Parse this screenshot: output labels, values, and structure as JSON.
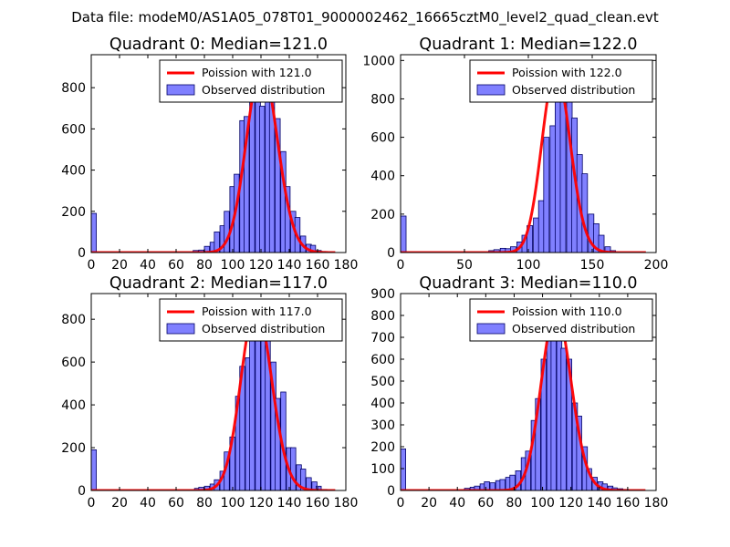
{
  "figure": {
    "suptitle": "Data file: modeM0/AS1A05_078T01_9000002462_16665cztM0_level2_quad_clean.evt"
  },
  "colors": {
    "hist_fill": "#8080ff",
    "hist_edge": "#000066",
    "line": "#ff0000",
    "legend_edge": "#000000",
    "axes_edge": "#000000"
  },
  "chart_data": [
    {
      "type": "bar",
      "title": "Quadrant 0: Median=121.0",
      "median": 121.0,
      "xlim": [
        0,
        180
      ],
      "ylim": [
        0,
        960
      ],
      "xticks": [
        0,
        20,
        40,
        60,
        80,
        100,
        120,
        140,
        160,
        180
      ],
      "yticks": [
        0,
        200,
        400,
        600,
        800
      ],
      "bin_width": 3.6,
      "bins": [
        [
          0,
          190
        ],
        [
          72,
          10
        ],
        [
          76,
          12
        ],
        [
          80,
          30
        ],
        [
          84,
          50
        ],
        [
          87,
          100
        ],
        [
          91,
          130
        ],
        [
          94,
          200
        ],
        [
          98,
          320
        ],
        [
          101,
          380
        ],
        [
          105,
          640
        ],
        [
          108,
          660
        ],
        [
          112,
          800
        ],
        [
          116,
          830
        ],
        [
          119,
          710
        ],
        [
          123,
          900
        ],
        [
          126,
          780
        ],
        [
          130,
          650
        ],
        [
          134,
          490
        ],
        [
          137,
          320
        ],
        [
          141,
          200
        ],
        [
          144,
          170
        ],
        [
          148,
          80
        ],
        [
          152,
          40
        ],
        [
          155,
          35
        ],
        [
          159,
          10
        ],
        [
          162,
          5
        ]
      ],
      "legend": {
        "line_label": "Poission with 121.0",
        "hist_label": "Observed distribution",
        "position": "upper-right"
      }
    },
    {
      "type": "bar",
      "title": "Quadrant 1: Median=122.0",
      "median": 122.0,
      "xlim": [
        0,
        200
      ],
      "ylim": [
        0,
        1030
      ],
      "xticks": [
        0,
        50,
        100,
        150,
        200
      ],
      "yticks": [
        0,
        200,
        400,
        600,
        800,
        1000
      ],
      "bin_width": 4.3,
      "bins": [
        [
          0,
          190
        ],
        [
          69,
          10
        ],
        [
          73,
          15
        ],
        [
          78,
          22
        ],
        [
          82,
          20
        ],
        [
          86,
          30
        ],
        [
          91,
          55
        ],
        [
          95,
          90
        ],
        [
          99,
          140
        ],
        [
          104,
          180
        ],
        [
          108,
          270
        ],
        [
          112,
          600
        ],
        [
          117,
          660
        ],
        [
          121,
          880
        ],
        [
          125,
          950
        ],
        [
          130,
          810
        ],
        [
          134,
          700
        ],
        [
          138,
          510
        ],
        [
          142,
          410
        ],
        [
          147,
          200
        ],
        [
          151,
          150
        ],
        [
          155,
          90
        ],
        [
          160,
          30
        ],
        [
          164,
          10
        ]
      ],
      "legend": {
        "line_label": "Poission with 122.0",
        "hist_label": "Observed distribution",
        "position": "upper-right"
      }
    },
    {
      "type": "bar",
      "title": "Quadrant 2: Median=117.0",
      "median": 117.0,
      "xlim": [
        0,
        180
      ],
      "ylim": [
        0,
        920
      ],
      "xticks": [
        0,
        20,
        40,
        60,
        80,
        100,
        120,
        140,
        160,
        180
      ],
      "yticks": [
        0,
        200,
        400,
        600,
        800
      ],
      "bin_width": 3.6,
      "bins": [
        [
          0,
          190
        ],
        [
          73,
          10
        ],
        [
          76,
          15
        ],
        [
          80,
          20
        ],
        [
          84,
          30
        ],
        [
          87,
          50
        ],
        [
          91,
          90
        ],
        [
          94,
          180
        ],
        [
          98,
          250
        ],
        [
          102,
          440
        ],
        [
          105,
          580
        ],
        [
          109,
          620
        ],
        [
          112,
          760
        ],
        [
          116,
          800
        ],
        [
          120,
          860
        ],
        [
          123,
          730
        ],
        [
          127,
          600
        ],
        [
          130,
          430
        ],
        [
          134,
          460
        ],
        [
          138,
          200
        ],
        [
          141,
          200
        ],
        [
          145,
          120
        ],
        [
          148,
          100
        ],
        [
          152,
          60
        ],
        [
          156,
          40
        ],
        [
          159,
          20
        ],
        [
          163,
          5
        ]
      ],
      "legend": {
        "line_label": "Poission with 117.0",
        "hist_label": "Observed distribution",
        "position": "upper-right"
      }
    },
    {
      "type": "bar",
      "title": "Quadrant 3: Median=110.0",
      "median": 110.0,
      "xlim": [
        0,
        180
      ],
      "ylim": [
        0,
        900
      ],
      "xticks": [
        0,
        20,
        40,
        60,
        80,
        100,
        120,
        140,
        160,
        180
      ],
      "yticks": [
        0,
        100,
        200,
        300,
        400,
        500,
        600,
        700,
        800,
        900
      ],
      "bin_width": 3.6,
      "bins": [
        [
          0,
          190
        ],
        [
          45,
          10
        ],
        [
          49,
          15
        ],
        [
          52,
          20
        ],
        [
          56,
          30
        ],
        [
          59,
          40
        ],
        [
          63,
          35
        ],
        [
          67,
          45
        ],
        [
          70,
          50
        ],
        [
          74,
          60
        ],
        [
          77,
          70
        ],
        [
          81,
          90
        ],
        [
          85,
          150
        ],
        [
          88,
          180
        ],
        [
          92,
          320
        ],
        [
          95,
          420
        ],
        [
          99,
          600
        ],
        [
          103,
          700
        ],
        [
          106,
          800
        ],
        [
          110,
          820
        ],
        [
          113,
          650
        ],
        [
          117,
          600
        ],
        [
          121,
          400
        ],
        [
          124,
          340
        ],
        [
          128,
          200
        ],
        [
          131,
          100
        ],
        [
          135,
          60
        ],
        [
          139,
          40
        ],
        [
          142,
          30
        ],
        [
          146,
          20
        ],
        [
          149,
          12
        ],
        [
          153,
          8
        ],
        [
          157,
          5
        ]
      ],
      "legend": {
        "line_label": "Poission with 110.0",
        "hist_label": "Observed distribution",
        "position": "upper-right"
      }
    }
  ]
}
